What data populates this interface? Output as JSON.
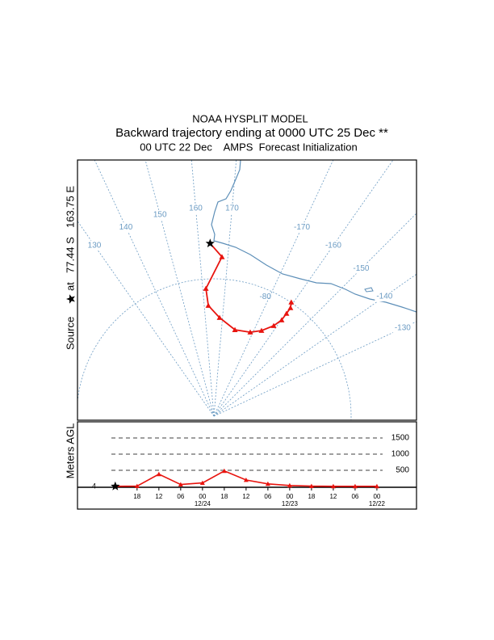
{
  "chart_data": [
    {
      "type": "map",
      "title": "NOAA HYSPLIT MODEL",
      "subtitle": "Backward trajectory ending at 0000 UTC 25 Dec **",
      "caption": "00 UTC 22 Dec    AMPS  Forecast Initialization",
      "source": {
        "label": "Source",
        "at": "at",
        "lat": {
          "value": -77.44,
          "label": "77.44 S"
        },
        "lon": {
          "value": 163.75,
          "label": "163.75 E"
        }
      },
      "meridians": [
        130,
        140,
        150,
        160,
        170,
        -170,
        -160,
        -150,
        -140,
        -130
      ],
      "parallels": [
        -80
      ],
      "line_color": "#6b9bc3",
      "trajectory": {
        "lat": [
          -77.44,
          -78.4,
          -80.69,
          -81.93,
          -82.81,
          -83.52,
          -83.33,
          -82.86,
          -82.1,
          -81.43,
          -80.84,
          -80.34,
          -79.97
        ],
        "lon": [
          163.75,
          167.9,
          161.4,
          162.1,
          168.3,
          178.7,
          -171.6,
          -165.9,
          -161.5,
          -159.8,
          -159.7,
          -159.7,
          -160.8
        ],
        "color": "#e8140f"
      }
    },
    {
      "type": "line",
      "ylabel": "Meters AGL",
      "x": [
        0,
        -6,
        -12,
        -18,
        -24,
        -30,
        -36,
        -42,
        -48,
        -54,
        -60,
        -66,
        -72
      ],
      "values": [
        4,
        10,
        380,
        60,
        110,
        480,
        200,
        80,
        30,
        10,
        5,
        5,
        5
      ],
      "color": "#e8140f",
      "xlim": [
        10.4,
        -82.9
      ],
      "ylim": [
        0,
        2000
      ],
      "yticks": [
        500,
        1000,
        1500
      ],
      "xticks": [
        {
          "value": -6,
          "label": "18"
        },
        {
          "value": -12,
          "label": "12"
        },
        {
          "value": -18,
          "label": "06"
        },
        {
          "value": -24,
          "label": "00"
        },
        {
          "value": -30,
          "label": "18"
        },
        {
          "value": -36,
          "label": "12"
        },
        {
          "value": -42,
          "label": "06"
        },
        {
          "value": -48,
          "label": "00"
        },
        {
          "value": -54,
          "label": "18"
        },
        {
          "value": -60,
          "label": "12"
        },
        {
          "value": -66,
          "label": "06"
        },
        {
          "value": -72,
          "label": "00"
        }
      ],
      "date_labels": [
        {
          "value": -24,
          "label": "12/24"
        },
        {
          "value": -48,
          "label": "12/23"
        },
        {
          "value": -72,
          "label": "12/22"
        }
      ],
      "source_height": 4
    }
  ]
}
